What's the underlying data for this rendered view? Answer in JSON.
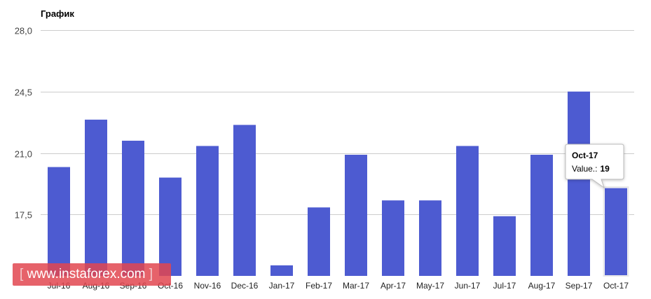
{
  "chart_data": {
    "type": "bar",
    "title": "График",
    "categories": [
      "Jul-16",
      "Aug-16",
      "Sep-16",
      "Oct-16",
      "Nov-16",
      "Dec-16",
      "Jan-17",
      "Feb-17",
      "Mar-17",
      "Apr-17",
      "May-17",
      "Jun-17",
      "Jul-17",
      "Aug-17",
      "Sep-17",
      "Oct-17"
    ],
    "values": [
      20.2,
      22.9,
      21.7,
      19.6,
      21.4,
      22.6,
      14.6,
      17.9,
      20.9,
      18.3,
      18.3,
      21.4,
      17.4,
      20.9,
      24.5,
      19
    ],
    "ylim": [
      14,
      28
    ],
    "yticks": [
      "28,0",
      "24,5",
      "21,0",
      "17,5"
    ],
    "yticks_values": [
      28,
      24.5,
      21,
      17.5
    ],
    "bar_color": "#4d5bd1",
    "grid": true,
    "legend": "none"
  },
  "tooltip": {
    "category": "Oct-17",
    "label": "Value.:",
    "value": "19"
  },
  "watermark": {
    "open": "[",
    "text": "www.instaforex.com",
    "close": "]"
  }
}
